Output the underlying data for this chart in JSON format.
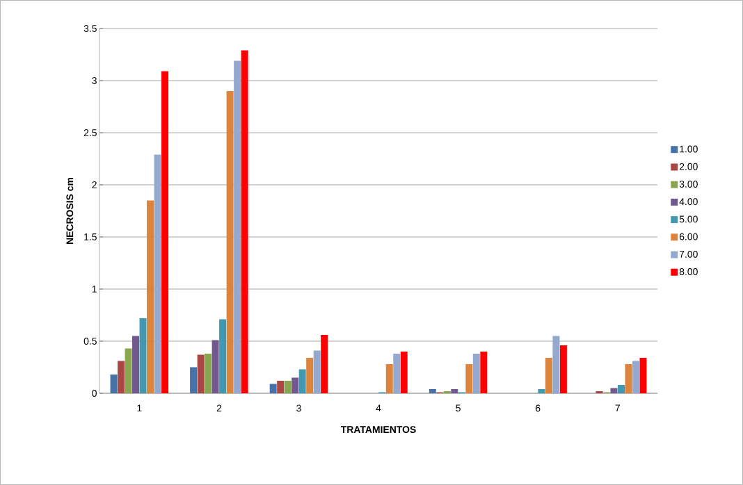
{
  "chart_data": {
    "type": "bar",
    "xlabel": "TRATAMIENTOS",
    "ylabel": "NECROSIS cm",
    "categories": [
      "1",
      "2",
      "3",
      "4",
      "5",
      "6",
      "7"
    ],
    "series": [
      {
        "name": "1.00",
        "color": "#4572a7",
        "values": [
          0.18,
          0.25,
          0.09,
          0,
          0.04,
          0,
          0
        ]
      },
      {
        "name": "2.00",
        "color": "#aa4643",
        "values": [
          0.31,
          0.37,
          0.12,
          0,
          0.01,
          0,
          0.02
        ]
      },
      {
        "name": "3.00",
        "color": "#89a54e",
        "values": [
          0.43,
          0.38,
          0.12,
          0,
          0.02,
          0,
          0.01
        ]
      },
      {
        "name": "4.00",
        "color": "#71588f",
        "values": [
          0.55,
          0.51,
          0.15,
          0,
          0.04,
          0,
          0.05
        ]
      },
      {
        "name": "5.00",
        "color": "#4198af",
        "values": [
          0.72,
          0.71,
          0.23,
          0.01,
          0.01,
          0.04,
          0.08
        ]
      },
      {
        "name": "6.00",
        "color": "#db843d",
        "values": [
          1.85,
          2.9,
          0.34,
          0.28,
          0.28,
          0.34,
          0.28
        ]
      },
      {
        "name": "7.00",
        "color": "#93a9cf",
        "values": [
          2.29,
          3.19,
          0.41,
          0.38,
          0.38,
          0.55,
          0.31
        ]
      },
      {
        "name": "8.00",
        "color": "#ff0000",
        "values": [
          3.09,
          3.29,
          0.56,
          0.4,
          0.4,
          0.46,
          0.34
        ]
      }
    ],
    "ylim": [
      0,
      3.5
    ],
    "yticks": [
      0,
      0.5,
      1,
      1.5,
      2,
      2.5,
      3,
      3.5
    ],
    "grid": "y",
    "legend": "right"
  }
}
